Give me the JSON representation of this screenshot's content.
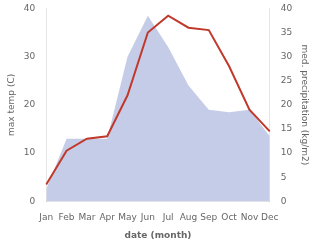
{
  "chart_data": {
    "type": "line",
    "xlabel": "date (month)",
    "ylabel": "max temp (C)",
    "y2label": "med. precipitation (kg/m2)",
    "categories": [
      "Jan",
      "Feb",
      "Mar",
      "Apr",
      "May",
      "Jun",
      "Jul",
      "Aug",
      "Sep",
      "Oct",
      "Nov",
      "Dec"
    ],
    "series": [
      {
        "type": "area",
        "axis": "y2",
        "color": "#c5cce8",
        "values": [
          2.5,
          13.0,
          13.0,
          13.0,
          30.0,
          38.5,
          32.0,
          24.0,
          19.0,
          18.5,
          19.0,
          13.5
        ]
      },
      {
        "type": "line",
        "color": "#c0392b",
        "values": [
          3.5,
          10.5,
          13.0,
          13.5,
          22.0,
          35.0,
          38.5,
          36.0,
          35.5,
          28.0,
          19.0,
          14.5
        ]
      }
    ],
    "ylim": [
      0,
      40
    ],
    "yticks": [
      0,
      10,
      20,
      30,
      40
    ],
    "y2lim": [
      0,
      40
    ],
    "y2ticks": [
      0,
      5,
      10,
      15,
      20,
      25,
      30,
      35,
      40
    ],
    "grid": false
  }
}
